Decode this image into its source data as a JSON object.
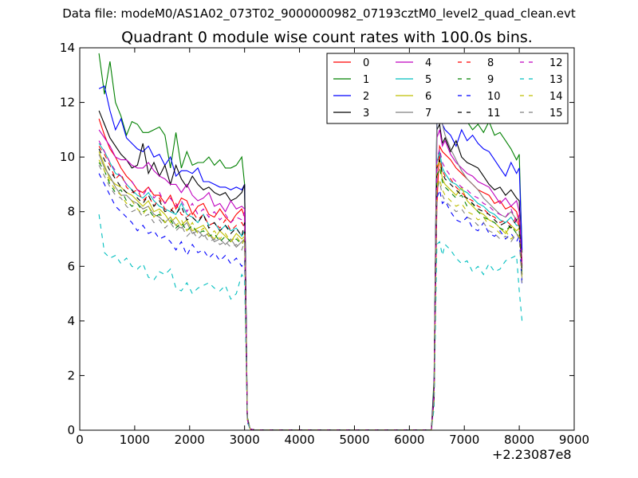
{
  "suptitle": "Data file: modeM0/AS1A02_073T02_9000000982_07193cztM0_level2_quad_clean.evt",
  "chart_data": {
    "type": "line",
    "title": "Quadrant 0 module wise count rates with 100.0s bins.",
    "xlabel": "",
    "ylabel": "",
    "x_offset_label": "+2.23087e8",
    "xlim": [
      0,
      9000
    ],
    "ylim": [
      0,
      14
    ],
    "xticks": [
      0,
      1000,
      2000,
      3000,
      4000,
      5000,
      6000,
      7000,
      8000,
      9000
    ],
    "yticks": [
      0,
      2,
      4,
      6,
      8,
      10,
      12,
      14
    ],
    "grid": false,
    "legend": {
      "location": "top-right",
      "columns": 4
    },
    "x": [
      350,
      450,
      550,
      650,
      750,
      850,
      950,
      1050,
      1150,
      1250,
      1350,
      1450,
      1550,
      1650,
      1750,
      1850,
      1950,
      2050,
      2150,
      2250,
      2350,
      2450,
      2550,
      2650,
      2750,
      2850,
      2950,
      3000,
      3050,
      3100,
      3150,
      3200,
      4000,
      5000,
      6000,
      6400,
      6450,
      6500,
      6550,
      6600,
      6650,
      6750,
      6850,
      6950,
      7050,
      7150,
      7250,
      7350,
      7450,
      7550,
      7650,
      7750,
      7850,
      7950,
      8000,
      8050
    ],
    "series": [
      {
        "name": "0",
        "color": "#ff0000",
        "dash": false,
        "values": [
          11.4,
          10.8,
          10.3,
          10.0,
          9.6,
          9.3,
          9.1,
          8.8,
          8.7,
          8.9,
          8.6,
          8.6,
          8.3,
          8.6,
          8.1,
          8.5,
          8.4,
          7.9,
          8.2,
          8.3,
          7.9,
          7.8,
          8.1,
          7.8,
          7.6,
          7.9,
          8.1,
          7.8,
          0.4,
          0.05,
          0.02,
          0.01,
          0.01,
          0.01,
          0.01,
          0.01,
          1.3,
          8.2,
          10.4,
          10.2,
          10.1,
          9.9,
          9.6,
          9.4,
          9.2,
          9.0,
          8.8,
          8.7,
          8.6,
          8.3,
          8.4,
          8.1,
          8.2,
          8.0,
          7.6,
          6.2
        ]
      },
      {
        "name": "1",
        "color": "#008000",
        "dash": false,
        "values": [
          13.8,
          12.3,
          13.5,
          12.0,
          11.5,
          10.8,
          11.3,
          11.2,
          10.9,
          10.9,
          11.0,
          11.1,
          10.8,
          9.6,
          10.9,
          9.6,
          10.2,
          9.7,
          9.8,
          9.8,
          10.0,
          9.7,
          9.9,
          9.6,
          9.6,
          9.7,
          10.0,
          9.0,
          0.5,
          0.05,
          0.02,
          0.01,
          0.01,
          0.01,
          0.01,
          0.01,
          1.9,
          11.6,
          12.1,
          11.8,
          11.7,
          11.3,
          11.8,
          11.6,
          11.3,
          11.0,
          11.2,
          10.9,
          11.3,
          10.8,
          10.9,
          10.6,
          10.3,
          9.9,
          10.1,
          6.5
        ]
      },
      {
        "name": "2",
        "color": "#0000ff",
        "dash": false,
        "values": [
          12.5,
          12.6,
          11.7,
          11.0,
          11.4,
          10.7,
          10.5,
          10.3,
          10.2,
          10.4,
          10.0,
          10.1,
          9.7,
          10.0,
          9.3,
          9.5,
          9.5,
          9.4,
          9.6,
          9.1,
          9.1,
          9.0,
          8.9,
          8.9,
          8.8,
          8.9,
          8.8,
          9.0,
          0.4,
          0.05,
          0.02,
          0.01,
          0.01,
          0.01,
          0.01,
          0.01,
          1.6,
          11.4,
          11.6,
          11.2,
          11.0,
          10.8,
          10.4,
          11.0,
          10.6,
          10.8,
          10.5,
          10.3,
          10.2,
          9.9,
          9.6,
          9.3,
          9.8,
          9.4,
          9.6,
          6.6
        ]
      },
      {
        "name": "3",
        "color": "#000000",
        "dash": false,
        "values": [
          11.7,
          11.2,
          10.7,
          10.4,
          10.1,
          9.9,
          9.6,
          9.7,
          10.5,
          9.4,
          9.8,
          9.3,
          9.7,
          9.0,
          9.7,
          9.2,
          8.9,
          9.3,
          9.0,
          8.8,
          8.9,
          8.7,
          8.6,
          8.7,
          8.4,
          8.5,
          8.7,
          9.0,
          0.4,
          0.05,
          0.02,
          0.01,
          0.01,
          0.01,
          0.01,
          0.01,
          1.5,
          11.0,
          11.2,
          10.5,
          10.7,
          10.2,
          10.6,
          10.0,
          9.8,
          9.7,
          9.6,
          9.3,
          9.0,
          8.8,
          8.9,
          8.6,
          8.8,
          8.5,
          8.4,
          5.7
        ]
      },
      {
        "name": "4",
        "color": "#bf00bf",
        "dash": false,
        "values": [
          11.0,
          10.7,
          10.4,
          10.0,
          9.9,
          9.9,
          9.7,
          9.6,
          9.6,
          9.8,
          9.5,
          9.3,
          9.2,
          9.0,
          9.0,
          8.7,
          9.0,
          8.6,
          8.4,
          8.5,
          8.7,
          8.2,
          8.3,
          8.0,
          8.4,
          8.1,
          8.2,
          8.1,
          0.4,
          0.05,
          0.02,
          0.01,
          0.01,
          0.01,
          0.01,
          0.01,
          1.4,
          10.7,
          11.0,
          10.4,
          10.6,
          10.1,
          9.8,
          9.6,
          9.4,
          9.3,
          9.1,
          9.0,
          8.9,
          8.6,
          8.3,
          8.5,
          8.2,
          8.4,
          8.0,
          6.0
        ]
      },
      {
        "name": "5",
        "color": "#00bfbf",
        "dash": false,
        "values": [
          10.5,
          10.2,
          9.8,
          9.4,
          9.3,
          9.0,
          8.8,
          8.6,
          8.5,
          8.7,
          8.4,
          8.2,
          8.1,
          8.0,
          7.9,
          8.3,
          7.9,
          7.8,
          7.6,
          7.9,
          7.5,
          7.6,
          7.3,
          7.5,
          7.3,
          7.4,
          7.1,
          7.3,
          0.4,
          0.05,
          0.02,
          0.01,
          0.01,
          0.01,
          0.01,
          0.01,
          1.2,
          9.8,
          10.2,
          9.6,
          9.4,
          9.1,
          9.0,
          8.8,
          8.7,
          8.5,
          8.3,
          8.2,
          8.0,
          7.9,
          7.7,
          7.6,
          7.8,
          7.5,
          7.5,
          5.8
        ]
      },
      {
        "name": "6",
        "color": "#bfbf00",
        "dash": false,
        "values": [
          10.2,
          9.7,
          9.2,
          9.0,
          8.9,
          8.7,
          8.6,
          8.4,
          8.2,
          8.4,
          8.0,
          8.1,
          7.9,
          7.6,
          7.8,
          7.5,
          7.7,
          7.3,
          7.4,
          7.5,
          7.2,
          7.0,
          7.3,
          7.1,
          6.9,
          7.2,
          7.0,
          7.1,
          0.4,
          0.05,
          0.02,
          0.01,
          0.01,
          0.01,
          0.01,
          0.01,
          1.2,
          9.6,
          9.9,
          9.2,
          9.0,
          8.8,
          8.6,
          8.9,
          8.4,
          8.2,
          8.0,
          7.9,
          7.7,
          7.6,
          7.4,
          7.2,
          7.5,
          7.3,
          7.4,
          5.7
        ]
      },
      {
        "name": "7",
        "color": "#808080",
        "dash": false,
        "values": [
          10.1,
          9.6,
          9.3,
          8.9,
          8.6,
          8.6,
          8.4,
          8.3,
          8.1,
          8.2,
          7.9,
          7.8,
          7.6,
          7.8,
          7.5,
          7.4,
          7.6,
          7.2,
          7.3,
          7.1,
          7.2,
          6.9,
          7.0,
          6.8,
          7.0,
          6.7,
          6.9,
          7.0,
          0.4,
          0.05,
          0.02,
          0.01,
          0.01,
          0.01,
          0.01,
          0.01,
          1.1,
          11.5,
          11.8,
          11.2,
          10.8,
          10.3,
          9.9,
          9.5,
          9.2,
          9.0,
          8.8,
          8.5,
          8.3,
          8.1,
          7.9,
          7.8,
          8.0,
          7.7,
          7.8,
          5.5
        ]
      },
      {
        "name": "8",
        "color": "#ff0000",
        "dash": true,
        "values": [
          10.4,
          10.1,
          9.7,
          9.2,
          9.4,
          8.9,
          8.7,
          8.8,
          8.4,
          8.6,
          8.2,
          8.5,
          8.1,
          8.0,
          8.3,
          7.9,
          7.8,
          8.0,
          7.7,
          7.9,
          7.5,
          7.6,
          7.4,
          7.7,
          7.3,
          7.5,
          7.6,
          7.4,
          0.4,
          0.05,
          0.02,
          0.01,
          0.01,
          0.01,
          0.01,
          0.01,
          1.2,
          9.7,
          10.0,
          9.5,
          9.3,
          9.2,
          8.9,
          8.7,
          8.5,
          8.4,
          8.2,
          8.1,
          7.9,
          7.8,
          7.6,
          7.7,
          7.5,
          7.8,
          7.4,
          5.9
        ]
      },
      {
        "name": "9",
        "color": "#008000",
        "dash": true,
        "values": [
          9.8,
          9.5,
          9.0,
          8.7,
          8.8,
          8.4,
          8.2,
          8.3,
          8.0,
          8.1,
          7.8,
          7.9,
          7.6,
          7.7,
          7.4,
          7.6,
          7.3,
          7.5,
          7.2,
          7.3,
          7.1,
          7.2,
          6.9,
          7.1,
          6.9,
          7.0,
          6.8,
          7.0,
          0.4,
          0.05,
          0.02,
          0.01,
          0.01,
          0.01,
          0.01,
          0.01,
          1.1,
          9.3,
          9.6,
          9.1,
          8.9,
          8.7,
          8.5,
          8.6,
          8.2,
          8.3,
          8.0,
          7.8,
          7.7,
          7.6,
          7.4,
          7.3,
          7.5,
          7.2,
          7.3,
          5.6
        ]
      },
      {
        "name": "10",
        "color": "#0000ff",
        "dash": true,
        "values": [
          9.4,
          9.0,
          8.6,
          8.2,
          8.0,
          7.8,
          7.6,
          7.3,
          7.5,
          7.2,
          7.3,
          7.0,
          7.1,
          6.9,
          6.6,
          6.9,
          6.4,
          6.8,
          6.5,
          6.6,
          6.3,
          6.5,
          6.2,
          6.4,
          6.1,
          6.3,
          6.0,
          6.2,
          0.3,
          0.05,
          0.02,
          0.01,
          0.01,
          0.01,
          0.01,
          0.01,
          1.0,
          8.5,
          8.8,
          8.3,
          8.4,
          8.0,
          7.7,
          7.6,
          7.8,
          7.4,
          7.3,
          7.6,
          7.2,
          7.1,
          7.3,
          7.0,
          7.2,
          6.9,
          7.1,
          5.3
        ]
      },
      {
        "name": "11",
        "color": "#000000",
        "dash": true,
        "values": [
          10.3,
          9.9,
          9.5,
          9.2,
          8.9,
          8.7,
          8.8,
          8.5,
          8.3,
          8.6,
          8.2,
          8.4,
          8.0,
          8.1,
          7.9,
          8.2,
          7.7,
          7.8,
          7.6,
          7.9,
          7.4,
          7.6,
          7.3,
          7.5,
          7.2,
          7.4,
          7.1,
          7.6,
          0.4,
          0.05,
          0.02,
          0.01,
          0.01,
          0.01,
          0.01,
          0.01,
          1.2,
          9.6,
          9.9,
          9.4,
          9.2,
          9.0,
          8.8,
          8.6,
          8.5,
          8.3,
          8.1,
          8.0,
          7.9,
          7.7,
          7.5,
          7.6,
          7.4,
          7.7,
          7.5,
          5.8
        ]
      },
      {
        "name": "12",
        "color": "#bf00bf",
        "dash": true,
        "values": [
          10.6,
          10.2,
          9.8,
          9.5,
          9.3,
          9.0,
          9.1,
          8.8,
          8.6,
          8.9,
          8.5,
          8.7,
          8.3,
          8.5,
          8.2,
          8.4,
          8.0,
          8.3,
          7.9,
          8.1,
          7.8,
          8.0,
          7.7,
          7.9,
          7.6,
          7.8,
          7.7,
          8.0,
          0.4,
          0.05,
          0.02,
          0.01,
          0.01,
          0.01,
          0.01,
          0.01,
          1.3,
          9.9,
          10.3,
          9.8,
          9.6,
          9.3,
          9.1,
          8.9,
          8.8,
          8.6,
          8.5,
          8.3,
          8.2,
          8.0,
          7.9,
          7.8,
          8.1,
          7.6,
          7.9,
          6.1
        ]
      },
      {
        "name": "13",
        "color": "#00bfbf",
        "dash": true,
        "values": [
          7.9,
          6.5,
          6.3,
          6.4,
          6.1,
          6.3,
          6.0,
          5.9,
          6.1,
          5.6,
          5.5,
          5.8,
          5.7,
          5.9,
          5.2,
          5.1,
          5.4,
          5.0,
          5.2,
          5.3,
          5.4,
          5.2,
          5.1,
          5.3,
          4.8,
          5.0,
          5.7,
          5.5,
          0.3,
          0.05,
          0.02,
          0.01,
          0.01,
          0.01,
          0.01,
          0.01,
          0.8,
          6.8,
          6.9,
          6.4,
          6.8,
          6.6,
          6.3,
          6.1,
          6.2,
          5.8,
          6.0,
          5.7,
          6.1,
          5.8,
          5.9,
          6.2,
          6.3,
          6.4,
          5.1,
          4.0
        ]
      },
      {
        "name": "14",
        "color": "#bfbf00",
        "dash": true,
        "values": [
          9.9,
          9.5,
          9.1,
          8.8,
          8.6,
          8.3,
          8.4,
          8.1,
          7.9,
          8.2,
          7.8,
          8.0,
          7.6,
          7.8,
          7.5,
          7.7,
          7.3,
          7.6,
          7.2,
          7.4,
          7.1,
          7.3,
          7.0,
          7.2,
          6.9,
          7.1,
          6.8,
          7.0,
          0.4,
          0.05,
          0.02,
          0.01,
          0.01,
          0.01,
          0.01,
          0.01,
          1.1,
          8.9,
          9.2,
          8.8,
          8.6,
          8.4,
          8.2,
          8.3,
          8.0,
          7.9,
          7.7,
          7.8,
          7.5,
          7.4,
          7.2,
          7.3,
          7.0,
          7.2,
          7.1,
          5.6
        ]
      },
      {
        "name": "15",
        "color": "#808080",
        "dash": true,
        "values": [
          9.7,
          9.3,
          8.9,
          8.6,
          8.5,
          8.2,
          8.0,
          8.1,
          7.8,
          7.9,
          7.6,
          7.7,
          7.4,
          7.6,
          7.3,
          7.5,
          7.1,
          7.3,
          7.0,
          7.2,
          6.9,
          7.0,
          6.8,
          6.9,
          6.7,
          6.8,
          6.6,
          6.9,
          0.4,
          0.05,
          0.02,
          0.01,
          0.01,
          0.01,
          0.01,
          0.01,
          1.1,
          8.8,
          9.1,
          8.6,
          8.4,
          8.2,
          8.0,
          8.1,
          7.8,
          7.7,
          7.5,
          7.6,
          7.3,
          7.2,
          7.0,
          7.1,
          6.9,
          7.2,
          7.0,
          5.4
        ]
      }
    ]
  }
}
